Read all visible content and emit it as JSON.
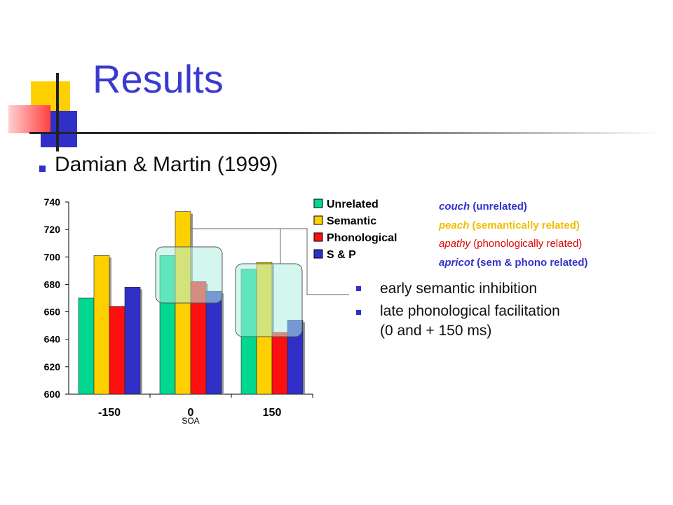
{
  "slide": {
    "title": "Results",
    "subtitle": "Damian & Martin (1999)",
    "bullets": [
      "early semantic inhibition",
      "late phonological facilitation",
      "(0 and + 150 ms)"
    ],
    "conditions": [
      {
        "word": "couch",
        "rest": " (unrelated)",
        "color": "#3333c8"
      },
      {
        "word": "peach",
        "rest": " (semantically related)",
        "color": "#f0c000"
      },
      {
        "word": "apathy",
        "rest": " (phonologically related)",
        "color": "#e00000"
      },
      {
        "word": "apricot",
        "rest": " (sem & phono related)",
        "color": "#3333c8"
      }
    ]
  },
  "chart_data": {
    "type": "bar",
    "categories": [
      "-150",
      "0",
      "150"
    ],
    "xlabel": "SOA",
    "ylabel": "",
    "ylim": [
      600,
      740
    ],
    "yticks": [
      "600",
      "620",
      "640",
      "660",
      "680",
      "700",
      "720",
      "740"
    ],
    "series": [
      {
        "name": "Unrelated",
        "color": "#00d890",
        "values": [
          670,
          701,
          691
        ]
      },
      {
        "name": "Semantic",
        "color": "#ffd000",
        "values": [
          701,
          733,
          696
        ]
      },
      {
        "name": "Phonological",
        "color": "#ff1010",
        "values": [
          664,
          682,
          645
        ]
      },
      {
        "name": "S & P",
        "color": "#3030c8",
        "values": [
          678,
          675,
          654
        ]
      }
    ],
    "legend_position": "top-right",
    "grid": false
  }
}
